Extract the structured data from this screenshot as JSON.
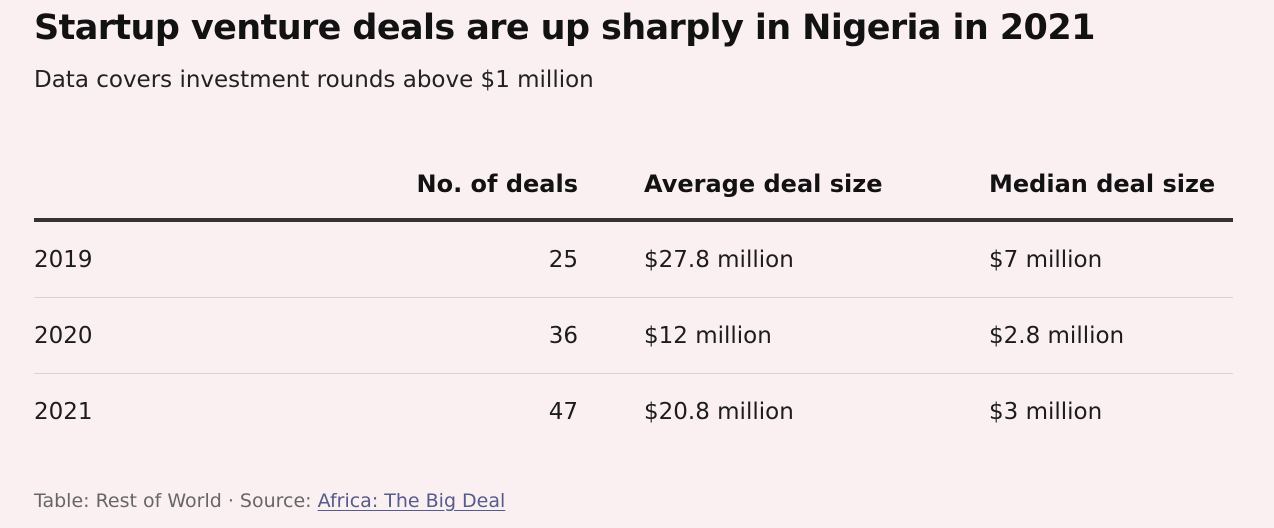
{
  "title": "Startup venture deals are up sharply in Nigeria in 2021",
  "subtitle": "Data covers investment rounds above $1 million",
  "footer": {
    "prefix": "Table: Rest of World · Source: ",
    "source_link": "Africa: The Big Deal"
  },
  "chart_data": {
    "type": "table",
    "columns": [
      "",
      "No. of deals",
      "Average deal size",
      "Median deal size"
    ],
    "rows": [
      {
        "year": "2019",
        "deals": "25",
        "avg": "$27.8 million",
        "median": "$7 million"
      },
      {
        "year": "2020",
        "deals": "36",
        "avg": "$12 million",
        "median": "$2.8 million"
      },
      {
        "year": "2021",
        "deals": "47",
        "avg": "$20.8 million",
        "median": "$3 million"
      }
    ],
    "deals_values": [
      25,
      36,
      47
    ],
    "avg_deal_size_millions": [
      27.8,
      12,
      20.8
    ],
    "median_deal_size_millions": [
      7,
      2.8,
      3
    ]
  }
}
